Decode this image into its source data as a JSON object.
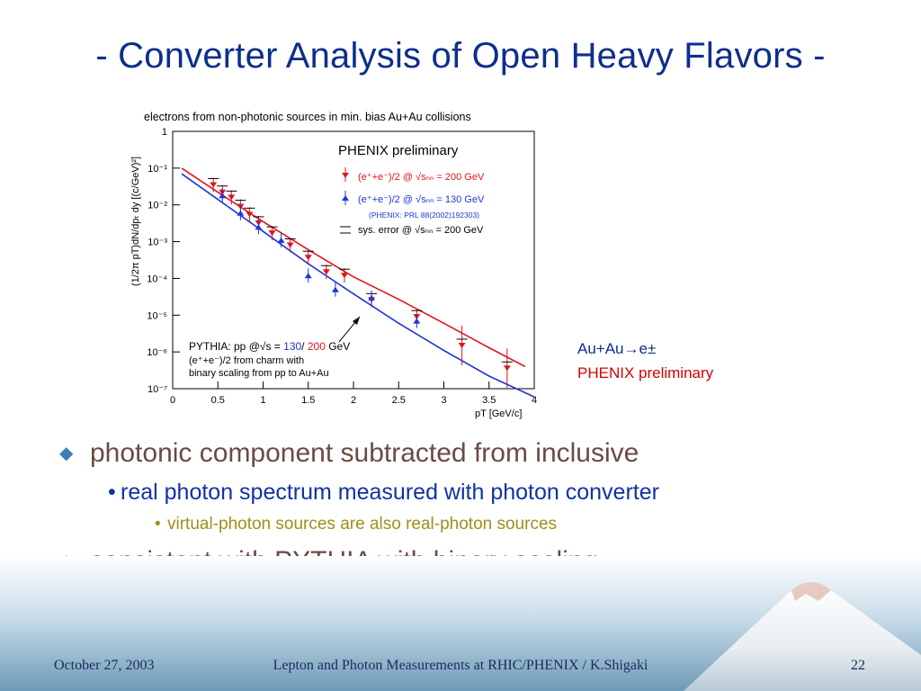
{
  "title": "- Converter Analysis of Open Heavy Flavors -",
  "figure": {
    "caption": "electrons from non-photonic sources in min. bias Au+Au collisions",
    "ylabel": "(1/2π pT)dN/dpₜ dy [(c/GeV)²]",
    "xlabel": "pT [GeV/c]",
    "xticks": [
      "0",
      "0.5",
      "1",
      "1.5",
      "2",
      "2.5",
      "3",
      "3.5",
      "4"
    ],
    "yticks": [
      "1",
      "10⁻¹",
      "10⁻²",
      "10⁻³",
      "10⁻⁴",
      "10⁻⁵",
      "10⁻⁶",
      "10⁻⁷"
    ],
    "legend": {
      "title": "PHENIX preliminary",
      "red": "(e⁺+e⁻)/2 @ √sₙₙ = 200 GeV",
      "blue": "(e⁺+e⁻)/2 @ √sₙₙ = 130 GeV",
      "ref": "(PHENIX: PRL 88(2002)192303)",
      "syst": "sys. error @ √sₙₙ = 200 GeV"
    },
    "pythia": {
      "prefix": "PYTHIA: pp @√s = ",
      "val1": "130",
      "sep": "/ ",
      "val2": "200",
      "unit": " GeV",
      "line2": "(e⁺+e⁻)/2 from charm with",
      "line3": "binary scaling from pp to Au+Au"
    },
    "colors": {
      "red": "#e0141e",
      "blue": "#1f35d6",
      "syst": "#000000"
    }
  },
  "chart_data": {
    "type": "scatter",
    "title": "electrons from non-photonic sources in min. bias Au+Au collisions",
    "xlabel": "pT [GeV/c]",
    "ylabel": "(1/2π pT)dN/dpT dy [(c/GeV)²]",
    "xlim": [
      0,
      4
    ],
    "ylim": [
      1e-07,
      1
    ],
    "yscale": "log",
    "series": [
      {
        "name": "(e⁺+e⁻)/2 @ √sNN = 200 GeV",
        "x": [
          0.45,
          0.55,
          0.65,
          0.75,
          0.85,
          0.95,
          1.1,
          1.3,
          1.5,
          1.7,
          1.9,
          2.2,
          2.7,
          3.2,
          3.7
        ],
        "y": [
          0.035,
          0.022,
          0.016,
          0.009,
          0.0055,
          0.0032,
          0.0017,
          0.0008,
          0.00037,
          0.00015,
          0.00012,
          2.6e-05,
          9e-06,
          1.5e-06,
          3.6e-07
        ]
      },
      {
        "name": "(e⁺+e⁻)/2 @ √sNN = 130 GeV",
        "x": [
          0.55,
          0.75,
          0.95,
          1.2,
          1.5,
          1.8,
          2.2,
          2.7
        ],
        "y": [
          0.018,
          0.006,
          0.0025,
          0.0011,
          0.00012,
          5e-05,
          3e-05,
          7e-06
        ]
      },
      {
        "name": "PYTHIA: pp @√s = 200 GeV",
        "x": [
          0.1,
          0.5,
          1.0,
          1.5,
          2.0,
          2.5,
          3.0,
          3.5,
          3.9
        ],
        "y": [
          0.1,
          0.022,
          0.0035,
          0.0006,
          0.00011,
          2.7e-05,
          6e-06,
          1.3e-06,
          4e-07
        ]
      },
      {
        "name": "PYTHIA: pp @√s = 130 GeV",
        "x": [
          0.1,
          0.5,
          1.0,
          1.5,
          2.0,
          2.5,
          3.0,
          3.5,
          4.0
        ],
        "y": [
          0.07,
          0.014,
          0.0019,
          0.00025,
          3.8e-05,
          6e-06,
          1.1e-06,
          2.2e-07,
          6e-08
        ]
      }
    ]
  },
  "annotation": {
    "reaction": "Au+Au→e±",
    "label": "PHENIX preliminary"
  },
  "bullets": {
    "b1": "photonic component subtracted from inclusive",
    "b1_sub": "real photon spectrum measured with photon converter",
    "b1_subsub": "virtual-photon sources are also real-photon sources",
    "b2": "consistent with PYTHIA with binary scaling",
    "marker1": "◆",
    "marker2": "•"
  },
  "footer": {
    "date": "October 27, 2003",
    "center": "Lepton and Photon Measurements at RHIC/PHENIX / K.Shigaki",
    "page": "22"
  }
}
